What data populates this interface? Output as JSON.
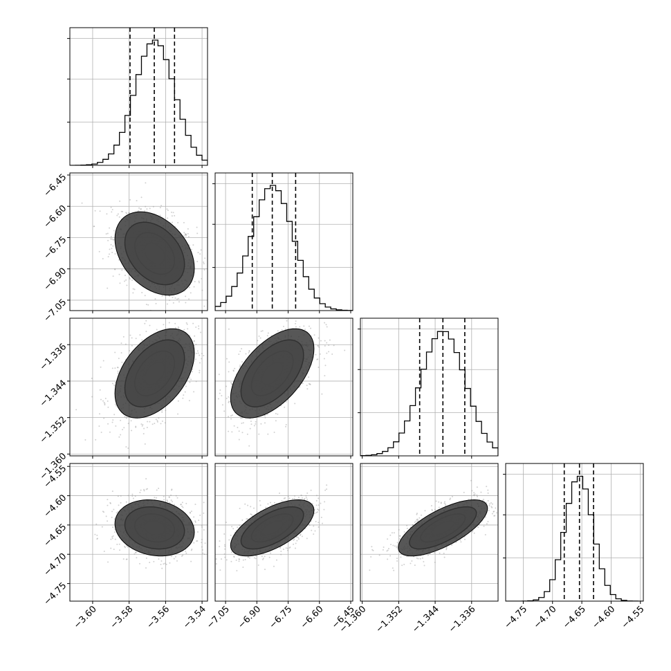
{
  "chart_data": {
    "type": "corner",
    "description_note": "",
    "params": [
      {
        "ticks": [
          "−3.60",
          "−3.58",
          "−3.56",
          "−3.54"
        ],
        "tick_values": [
          -3.6,
          -3.58,
          -3.56,
          -3.54
        ],
        "range": [
          -3.6125,
          -3.537
        ],
        "quantiles": [
          -3.5795,
          -3.5662,
          -3.5551
        ],
        "mean": -3.566,
        "sd": 0.0109
      },
      {
        "ticks": [
          "−6.45",
          "−6.60",
          "−6.75",
          "−6.90",
          "−7.05"
        ],
        "tick_values": [
          -6.45,
          -6.6,
          -6.75,
          -6.9,
          -7.05
        ],
        "x_ticks": [
          "−7.05",
          "−6.90",
          "−6.75",
          "−6.60",
          "−6.45"
        ],
        "x_tick_values": [
          -7.05,
          -6.9,
          -6.75,
          -6.6,
          -6.45
        ],
        "range": [
          -7.1,
          -6.44
        ],
        "quantiles": [
          -6.922,
          -6.826,
          -6.714
        ],
        "mean": -6.826,
        "sd": 0.1
      },
      {
        "ticks": [
          "−1.336",
          "−1.344",
          "−1.352",
          "−1.360"
        ],
        "tick_values": [
          -1.336,
          -1.344,
          -1.352,
          -1.36
        ],
        "x_ticks": [
          "−1.360",
          "−1.352",
          "−1.344",
          "−1.336"
        ],
        "x_tick_values": [
          -1.36,
          -1.352,
          -1.344,
          -1.336
        ],
        "range": [
          -1.3604,
          -1.3302
        ],
        "quantiles": [
          -1.3474,
          -1.3423,
          -1.3375
        ],
        "mean": -1.3423,
        "sd": 0.0049
      },
      {
        "ticks": [
          "−4.55",
          "−4.60",
          "−4.65",
          "−4.70",
          "−4.75"
        ],
        "tick_values": [
          -4.55,
          -4.6,
          -4.65,
          -4.7,
          -4.75
        ],
        "x_ticks": [
          "−4.75",
          "−4.70",
          "−4.65",
          "−4.60",
          "−4.55"
        ],
        "x_tick_values": [
          -4.75,
          -4.7,
          -4.65,
          -4.6,
          -4.55
        ],
        "range": [
          -4.78,
          -4.545
        ],
        "quantiles": [
          -4.68,
          -4.654,
          -4.63
        ],
        "mean": -4.655,
        "sd": 0.024
      }
    ],
    "correlations": [
      [
        1,
        -0.35,
        0.45,
        -0.15
      ],
      [
        -0.35,
        1,
        0.55,
        0.62
      ],
      [
        0.45,
        0.55,
        1,
        0.7
      ],
      [
        -0.15,
        0.62,
        0.7,
        1
      ]
    ],
    "grid": true,
    "contour_levels": [
      0.5,
      1.0,
      1.5,
      2.0
    ],
    "colors": {
      "ink": "#000000",
      "grid": "#b0b0b0",
      "points": "#9a9a9a"
    }
  }
}
